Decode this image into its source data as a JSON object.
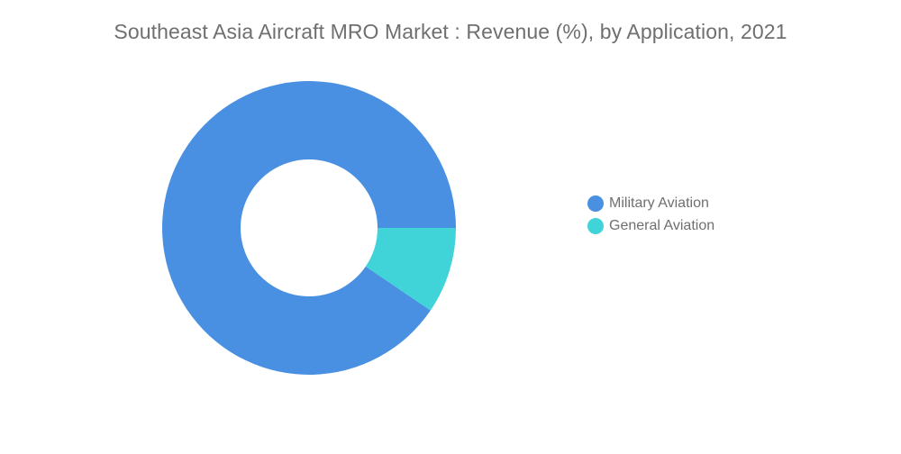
{
  "title": "Southeast Asia Aircraft MRO Market : Revenue (%), by Application, 2021",
  "chart_data": {
    "type": "pie",
    "subtype": "donut",
    "title": "Southeast Asia Aircraft MRO Market : Revenue (%), by Application, 2021",
    "categories": [
      "Military Aviation",
      "General Aviation"
    ],
    "values": [
      90.5,
      9.5
    ],
    "colors": [
      "#4a90e2",
      "#40d3d8"
    ],
    "legend_position": "right"
  },
  "legend": {
    "items": [
      {
        "label": "Military Aviation",
        "color": "#4a90e2"
      },
      {
        "label": "General Aviation",
        "color": "#40d3d8"
      }
    ]
  }
}
